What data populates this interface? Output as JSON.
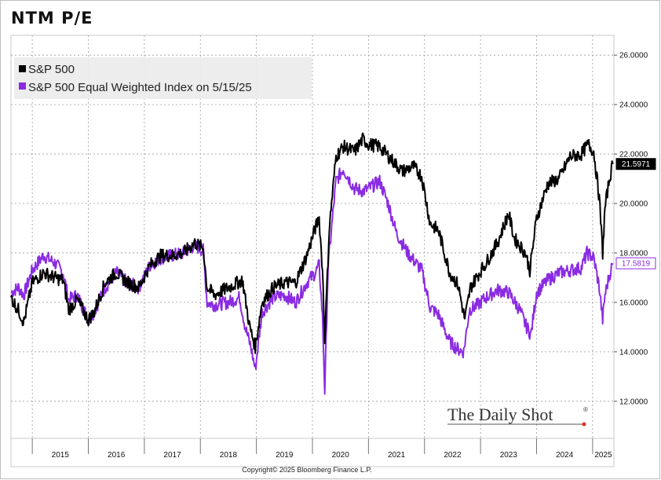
{
  "chart_data": {
    "type": "line",
    "title": "NTM P/E",
    "ylim": [
      10.5,
      26.8
    ],
    "xlim": [
      2014.62,
      2025.38
    ],
    "y_ticks": [
      "26.0000",
      "24.0000",
      "22.0000",
      "20.0000",
      "18.0000",
      "16.0000",
      "14.0000",
      "12.0000"
    ],
    "y_tick_values": [
      26,
      24,
      22,
      20,
      18,
      16,
      14,
      12
    ],
    "x_ticks": [
      "2015",
      "2016",
      "2017",
      "2018",
      "2019",
      "2020",
      "2021",
      "2022",
      "2023",
      "2024",
      "2025"
    ],
    "grid": true,
    "legend_position": "top-left",
    "series": [
      {
        "name": "S&P 500",
        "color": "#000000",
        "last_value_label": "21.5971",
        "x": [
          2014.62,
          2014.75,
          2014.85,
          2015.0,
          2015.2,
          2015.4,
          2015.55,
          2015.65,
          2015.8,
          2016.0,
          2016.1,
          2016.3,
          2016.5,
          2016.7,
          2016.9,
          2017.1,
          2017.3,
          2017.5,
          2017.7,
          2017.9,
          2018.05,
          2018.12,
          2018.25,
          2018.5,
          2018.75,
          2018.88,
          2018.98,
          2019.1,
          2019.3,
          2019.5,
          2019.7,
          2019.9,
          2020.05,
          2020.12,
          2020.18,
          2020.22,
          2020.3,
          2020.42,
          2020.55,
          2020.75,
          2020.9,
          2021.0,
          2021.2,
          2021.4,
          2021.6,
          2021.8,
          2021.95,
          2022.1,
          2022.25,
          2022.45,
          2022.6,
          2022.72,
          2022.82,
          2022.95,
          2023.1,
          2023.3,
          2023.5,
          2023.6,
          2023.8,
          2023.88,
          2024.0,
          2024.2,
          2024.4,
          2024.6,
          2024.8,
          2024.92,
          2025.02,
          2025.12,
          2025.18,
          2025.22,
          2025.3,
          2025.36
        ],
        "y": [
          16.2,
          15.7,
          15.2,
          16.8,
          17.2,
          17.0,
          16.9,
          15.7,
          16.1,
          15.3,
          15.6,
          16.8,
          17.2,
          16.8,
          16.6,
          17.5,
          17.9,
          17.9,
          18.0,
          18.4,
          18.2,
          16.6,
          16.3,
          16.6,
          16.9,
          15.0,
          14.2,
          16.0,
          16.6,
          16.8,
          16.8,
          17.9,
          19.0,
          19.4,
          17.3,
          14.5,
          19.0,
          21.9,
          22.3,
          22.1,
          22.6,
          22.4,
          22.3,
          21.8,
          21.3,
          21.5,
          21.1,
          19.2,
          18.9,
          17.2,
          16.7,
          15.3,
          16.6,
          17.1,
          17.6,
          18.4,
          19.6,
          18.6,
          18.0,
          17.3,
          19.4,
          20.8,
          21.0,
          21.9,
          22.0,
          22.4,
          22.1,
          20.2,
          18.0,
          19.8,
          21.0,
          21.6
        ]
      },
      {
        "name": "S&P 500 Equal Weighted Index on 5/15/25",
        "color": "#8a2be2",
        "last_value_label": "17.5819",
        "x": [
          2014.62,
          2014.75,
          2014.85,
          2015.0,
          2015.2,
          2015.4,
          2015.55,
          2015.65,
          2015.8,
          2016.0,
          2016.1,
          2016.3,
          2016.5,
          2016.7,
          2016.9,
          2017.1,
          2017.3,
          2017.5,
          2017.7,
          2017.9,
          2018.05,
          2018.12,
          2018.25,
          2018.5,
          2018.7,
          2018.8,
          2018.9,
          2018.98,
          2019.1,
          2019.3,
          2019.5,
          2019.7,
          2019.9,
          2020.05,
          2020.12,
          2020.18,
          2020.22,
          2020.28,
          2020.42,
          2020.55,
          2020.75,
          2020.9,
          2021.0,
          2021.2,
          2021.35,
          2021.5,
          2021.7,
          2021.95,
          2022.1,
          2022.25,
          2022.45,
          2022.6,
          2022.7,
          2022.8,
          2022.95,
          2023.1,
          2023.3,
          2023.5,
          2023.7,
          2023.8,
          2023.9,
          2024.0,
          2024.2,
          2024.4,
          2024.6,
          2024.8,
          2024.9,
          2025.02,
          2025.12,
          2025.18,
          2025.22,
          2025.3,
          2025.36
        ],
        "y": [
          16.4,
          16.6,
          16.3,
          17.3,
          17.9,
          17.6,
          17.2,
          16.1,
          16.3,
          15.3,
          15.6,
          16.6,
          17.2,
          16.8,
          16.6,
          17.5,
          17.8,
          17.9,
          18.0,
          18.3,
          18.1,
          16.0,
          15.9,
          16.0,
          16.2,
          15.0,
          14.2,
          13.3,
          15.6,
          16.2,
          16.3,
          16.0,
          16.8,
          17.2,
          17.5,
          15.4,
          12.4,
          17.5,
          20.9,
          21.4,
          20.6,
          20.5,
          20.6,
          20.9,
          20.0,
          18.8,
          18.0,
          17.3,
          15.8,
          15.5,
          14.4,
          14.1,
          14.0,
          15.7,
          15.9,
          16.2,
          16.5,
          16.4,
          15.7,
          15.1,
          14.7,
          16.4,
          16.9,
          17.2,
          17.3,
          17.4,
          18.0,
          17.8,
          16.6,
          15.3,
          16.3,
          17.1,
          17.58
        ]
      }
    ]
  },
  "source_text": "Copyright© 2025 Bloomberg Finance L.P.",
  "watermark_text": "The Daily Shot",
  "watermark_mark": "®"
}
